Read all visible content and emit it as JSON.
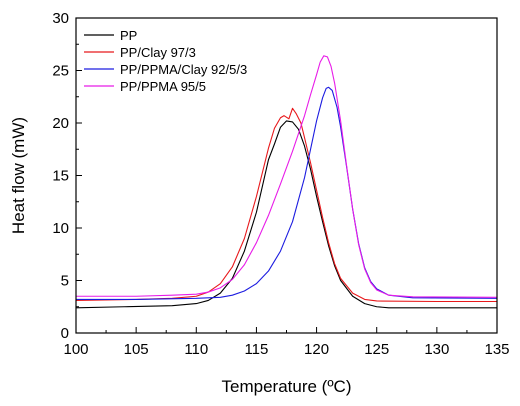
{
  "chart_data": {
    "type": "line",
    "xlabel": "Temperature (ºC)",
    "ylabel": "Heat flow (mW)",
    "xlim": [
      100,
      135
    ],
    "ylim": [
      0,
      30
    ],
    "xticks": [
      "100",
      "105",
      "110",
      "115",
      "120",
      "125",
      "130",
      "135"
    ],
    "yticks": [
      "0",
      "5",
      "10",
      "15",
      "20",
      "25",
      "30"
    ],
    "grid": false,
    "legend_position": "top-left",
    "series": [
      {
        "name": "PP",
        "color": "#000000",
        "points": [
          [
            100,
            2.4
          ],
          [
            104,
            2.5
          ],
          [
            108,
            2.6
          ],
          [
            110,
            2.8
          ],
          [
            111,
            3.1
          ],
          [
            112,
            3.8
          ],
          [
            113,
            5.2
          ],
          [
            114,
            7.8
          ],
          [
            115,
            11.5
          ],
          [
            116,
            16.5
          ],
          [
            116.5,
            18.0
          ],
          [
            117,
            19.6
          ],
          [
            117.5,
            20.2
          ],
          [
            118,
            20.1
          ],
          [
            118.5,
            19.4
          ],
          [
            119,
            17.8
          ],
          [
            119.5,
            15.6
          ],
          [
            120,
            13.0
          ],
          [
            120.5,
            10.6
          ],
          [
            121,
            8.3
          ],
          [
            121.5,
            6.4
          ],
          [
            122,
            5.0
          ],
          [
            123,
            3.5
          ],
          [
            124,
            2.8
          ],
          [
            125,
            2.5
          ],
          [
            126,
            2.4
          ],
          [
            130,
            2.4
          ],
          [
            135,
            2.4
          ]
        ]
      },
      {
        "name": "PP/Clay 97/3",
        "color": "#e8191c",
        "points": [
          [
            100,
            3.1
          ],
          [
            105,
            3.2
          ],
          [
            108,
            3.3
          ],
          [
            110,
            3.5
          ],
          [
            111,
            3.9
          ],
          [
            112,
            4.7
          ],
          [
            113,
            6.3
          ],
          [
            114,
            9.0
          ],
          [
            115,
            13.0
          ],
          [
            116,
            17.6
          ],
          [
            116.5,
            19.5
          ],
          [
            117,
            20.5
          ],
          [
            117.3,
            20.7
          ],
          [
            117.7,
            20.4
          ],
          [
            118,
            21.4
          ],
          [
            118.3,
            20.9
          ],
          [
            118.7,
            20.0
          ],
          [
            119,
            18.6
          ],
          [
            119.5,
            16.2
          ],
          [
            120,
            13.6
          ],
          [
            120.5,
            11.0
          ],
          [
            121,
            8.6
          ],
          [
            121.5,
            6.6
          ],
          [
            122,
            5.2
          ],
          [
            123,
            3.8
          ],
          [
            124,
            3.2
          ],
          [
            125,
            3.05
          ],
          [
            130,
            3.0
          ],
          [
            135,
            3.0
          ]
        ]
      },
      {
        "name": "PP/PPMA/Clay 92/5/3",
        "color": "#1c1ce0",
        "points": [
          [
            100,
            3.2
          ],
          [
            105,
            3.2
          ],
          [
            110,
            3.3
          ],
          [
            112,
            3.4
          ],
          [
            113,
            3.6
          ],
          [
            114,
            4.0
          ],
          [
            115,
            4.7
          ],
          [
            116,
            5.9
          ],
          [
            117,
            7.8
          ],
          [
            118,
            10.6
          ],
          [
            119,
            14.8
          ],
          [
            119.5,
            17.5
          ],
          [
            120,
            20.2
          ],
          [
            120.5,
            22.4
          ],
          [
            120.8,
            23.3
          ],
          [
            121,
            23.4
          ],
          [
            121.3,
            23.1
          ],
          [
            121.7,
            21.5
          ],
          [
            122,
            19.6
          ],
          [
            122.5,
            15.8
          ],
          [
            123,
            11.8
          ],
          [
            123.5,
            8.5
          ],
          [
            124,
            6.2
          ],
          [
            124.5,
            4.9
          ],
          [
            125,
            4.2
          ],
          [
            126,
            3.6
          ],
          [
            128,
            3.35
          ],
          [
            135,
            3.3
          ]
        ]
      },
      {
        "name": "PP/PPMA 95/5",
        "color": "#e81ce8",
        "points": [
          [
            100,
            3.5
          ],
          [
            105,
            3.5
          ],
          [
            108,
            3.6
          ],
          [
            110,
            3.7
          ],
          [
            111,
            3.9
          ],
          [
            112,
            4.3
          ],
          [
            113,
            5.1
          ],
          [
            114,
            6.5
          ],
          [
            115,
            8.6
          ],
          [
            116,
            11.2
          ],
          [
            117,
            14.2
          ],
          [
            118,
            17.3
          ],
          [
            119,
            20.7
          ],
          [
            119.5,
            22.7
          ],
          [
            120,
            24.6
          ],
          [
            120.3,
            25.8
          ],
          [
            120.6,
            26.4
          ],
          [
            120.9,
            26.3
          ],
          [
            121.2,
            25.4
          ],
          [
            121.5,
            23.8
          ],
          [
            122,
            20.2
          ],
          [
            122.5,
            15.9
          ],
          [
            123,
            11.8
          ],
          [
            123.5,
            8.4
          ],
          [
            124,
            6.1
          ],
          [
            124.5,
            4.8
          ],
          [
            125,
            4.1
          ],
          [
            126,
            3.6
          ],
          [
            128,
            3.45
          ],
          [
            135,
            3.4
          ]
        ]
      }
    ]
  }
}
